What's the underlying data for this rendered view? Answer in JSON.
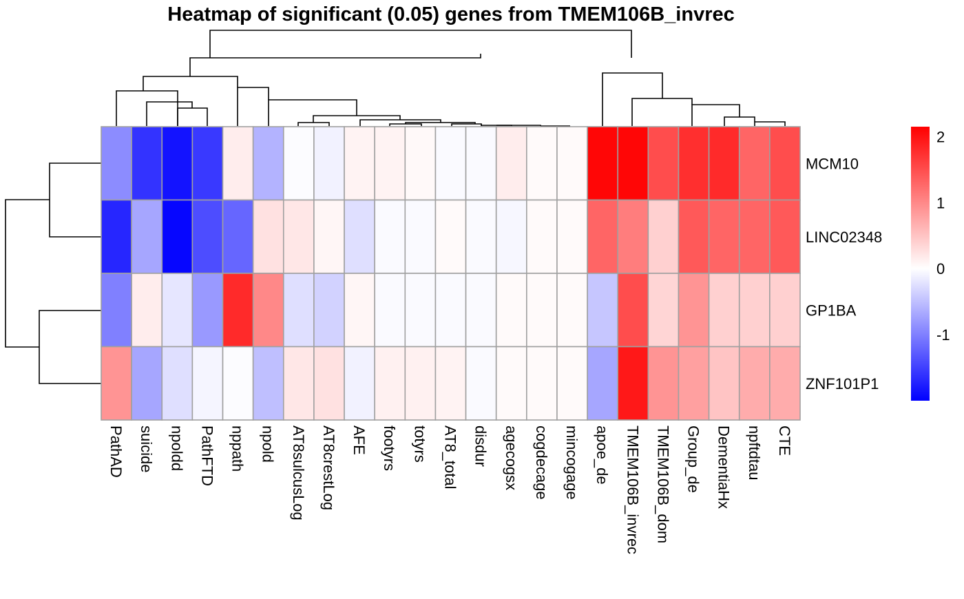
{
  "chart_data": {
    "type": "heatmap",
    "title": "Heatmap of significant (0.05) genes from  TMEM106B_invrec",
    "rows": [
      "MCM10",
      "LINC02348",
      "GP1BA",
      "ZNF101P1"
    ],
    "columns": [
      "PathAD",
      "suicide",
      "npoldd",
      "PathFTD",
      "nppath",
      "npold",
      "AT8sulcusLog",
      "AT8crestLog",
      "AFE",
      "footyrs",
      "totyrs",
      "AT8_total",
      "disdur",
      "agecogsx",
      "cogdecage",
      "mincogage",
      "apoe_de",
      "TMEM106B_invrec",
      "TMEM106B_dom",
      "Group_de",
      "DementiaHx",
      "npftdtau",
      "CTE"
    ],
    "values": [
      [
        -0.9,
        -1.6,
        -1.85,
        -1.55,
        0.15,
        -0.6,
        -0.02,
        -0.1,
        0.1,
        0.1,
        0.05,
        -0.04,
        -0.04,
        0.15,
        0.04,
        0.04,
        2.1,
        2.1,
        1.5,
        1.75,
        1.8,
        1.3,
        1.5
      ],
      [
        -1.7,
        -0.7,
        -1.95,
        -1.4,
        -1.2,
        0.25,
        0.2,
        0.08,
        -0.25,
        -0.04,
        -0.04,
        0.04,
        -0.04,
        -0.06,
        0.04,
        0.04,
        1.3,
        1.1,
        0.4,
        1.4,
        1.3,
        1.3,
        1.4
      ],
      [
        -1.0,
        0.15,
        -0.2,
        -0.8,
        1.8,
        1.0,
        -0.25,
        -0.35,
        0.08,
        -0.04,
        -0.04,
        -0.04,
        -0.04,
        0.04,
        0.04,
        0.04,
        -0.45,
        1.5,
        0.35,
        0.9,
        0.4,
        0.4,
        0.4
      ],
      [
        0.9,
        -0.7,
        -0.25,
        -0.08,
        -0.02,
        -0.5,
        0.2,
        0.25,
        -0.1,
        0.12,
        0.12,
        0.1,
        -0.04,
        0.04,
        0.04,
        0.04,
        -0.7,
        1.95,
        0.9,
        0.8,
        0.5,
        0.7,
        0.7
      ]
    ],
    "color_scale": {
      "low": "#0000ff",
      "mid": "#ffffff",
      "high": "#ff0000",
      "min": -2,
      "max": 2.15,
      "ticks": [
        2,
        1,
        0,
        -1
      ]
    },
    "cell_border_color": "#a0a0a0",
    "legend_position": "right"
  }
}
